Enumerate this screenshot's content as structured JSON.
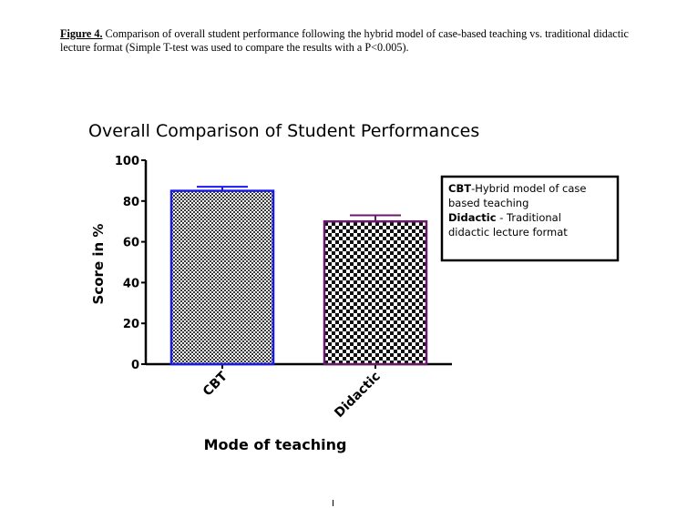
{
  "caption": {
    "label": "Figure 4.",
    "text": " Comparison of overall student performance following the hybrid model of case-based teaching vs. traditional didactic lecture format (Simple  T-test was used to compare the results with a P<0.005)."
  },
  "chart_data": {
    "type": "bar",
    "title": "Overall Comparison of Student Performances",
    "xlabel": "Mode of teaching",
    "ylabel": "Score in %",
    "ylim": [
      0,
      100
    ],
    "yticks": [
      0,
      20,
      40,
      60,
      80,
      100
    ],
    "categories": [
      "CBT",
      "Didactic"
    ],
    "values": [
      85,
      70
    ],
    "error_upper": [
      87,
      73
    ],
    "bar_colors": [
      "#1a1aee",
      "#6a1a6a"
    ],
    "fill_pattern": [
      "dense-checker",
      "checker"
    ],
    "legend": {
      "placement": "right",
      "entries": [
        {
          "term": "CBT",
          "desc": "-Hybrid model of case based teaching"
        },
        {
          "term": "Didactic",
          "desc": " - Traditional didactic lecture format"
        }
      ]
    }
  }
}
